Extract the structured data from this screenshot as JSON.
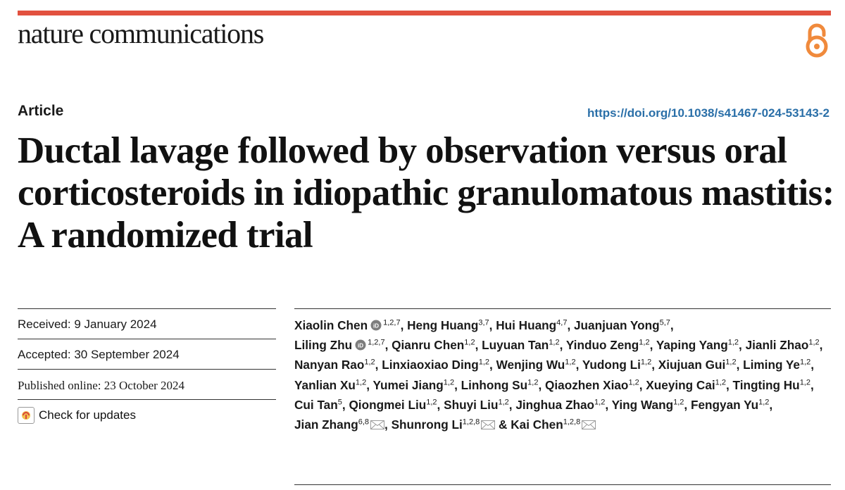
{
  "header": {
    "journal_name": "nature communications",
    "accent_color": "#e2513f",
    "open_access_icon": "open-access-lock-icon"
  },
  "article": {
    "type": "Article",
    "doi": "https://doi.org/10.1038/s41467-024-53143-2",
    "title": "Ductal lavage followed by observation versus oral corticosteroids in idiopathic granulomatous mastitis: A randomized trial"
  },
  "dates": {
    "received": "Received: 9 January 2024",
    "accepted": "Accepted: 30 September 2024",
    "published": "Published online: 23 October 2024",
    "check_updates": "Check for updates"
  },
  "authors": [
    {
      "name": "Xiaolin Chen",
      "orcid": true,
      "aff": "1,2,7"
    },
    {
      "name": "Heng Huang",
      "aff": "3,7"
    },
    {
      "name": "Hui Huang",
      "aff": "4,7"
    },
    {
      "name": "Juanjuan Yong",
      "aff": "5,7"
    },
    {
      "name": "Liling Zhu",
      "orcid": true,
      "aff": "1,2,7"
    },
    {
      "name": "Qianru Chen",
      "aff": "1,2"
    },
    {
      "name": "Luyuan Tan",
      "aff": "1,2"
    },
    {
      "name": "Yinduo Zeng",
      "aff": "1,2"
    },
    {
      "name": "Yaping Yang",
      "aff": "1,2"
    },
    {
      "name": "Jianli Zhao",
      "aff": "1,2"
    },
    {
      "name": "Nanyan Rao",
      "aff": "1,2"
    },
    {
      "name": "Linxiaoxiao Ding",
      "aff": "1,2"
    },
    {
      "name": "Wenjing Wu",
      "aff": "1,2"
    },
    {
      "name": "Yudong Li",
      "aff": "1,2"
    },
    {
      "name": "Xiujuan Gui",
      "aff": "1,2"
    },
    {
      "name": "Liming Ye",
      "aff": "1,2"
    },
    {
      "name": "Yanlian Xu",
      "aff": "1,2"
    },
    {
      "name": "Yumei Jiang",
      "aff": "1,2"
    },
    {
      "name": "Linhong Su",
      "aff": "1,2"
    },
    {
      "name": "Qiaozhen Xiao",
      "aff": "1,2"
    },
    {
      "name": "Xueying Cai",
      "aff": "1,2"
    },
    {
      "name": "Tingting Hu",
      "aff": "1,2"
    },
    {
      "name": "Cui Tan",
      "aff": "5"
    },
    {
      "name": "Qiongmei Liu",
      "aff": "1,2"
    },
    {
      "name": "Shuyi Liu",
      "aff": "1,2"
    },
    {
      "name": "Jinghua Zhao",
      "aff": "1,2"
    },
    {
      "name": "Ying Wang",
      "aff": "1,2"
    },
    {
      "name": "Fengyan Yu",
      "aff": "1,2"
    },
    {
      "name": "Jian Zhang",
      "aff": "6,8",
      "email": true
    },
    {
      "name": "Shunrong Li",
      "aff": "1,2,8",
      "email": true
    },
    {
      "name": "Kai Chen",
      "aff": "1,2,8",
      "email": true
    }
  ]
}
